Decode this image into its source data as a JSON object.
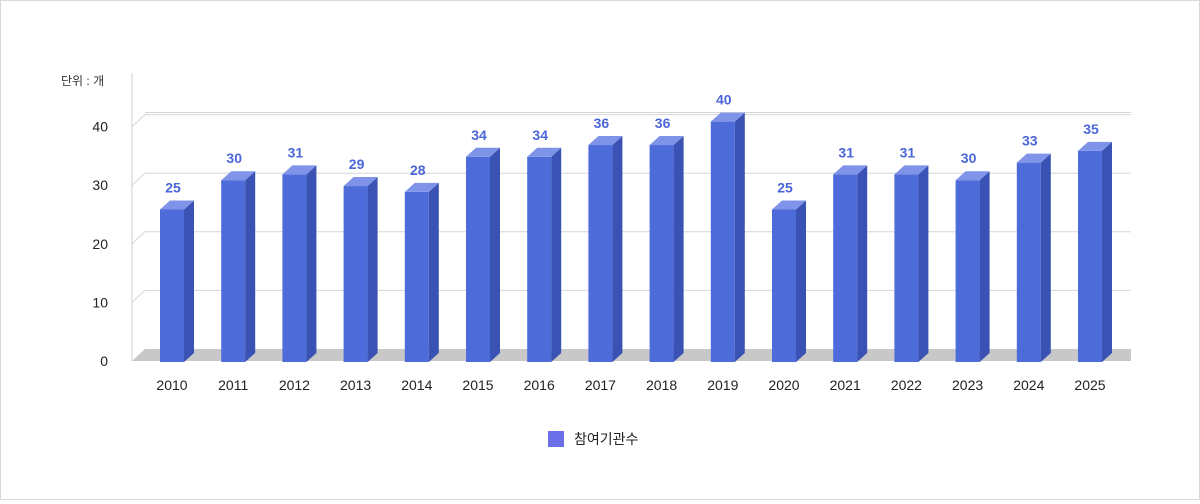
{
  "chart_data": {
    "type": "bar",
    "style": "3d",
    "unit_label": "단위 : 개",
    "categories": [
      "2010",
      "2011",
      "2012",
      "2013",
      "2014",
      "2015",
      "2016",
      "2017",
      "2018",
      "2019",
      "2020",
      "2021",
      "2022",
      "2023",
      "2024",
      "2025"
    ],
    "series": [
      {
        "name": "참여기관수",
        "values": [
          25,
          30,
          31,
          29,
          28,
          34,
          34,
          36,
          36,
          40,
          25,
          31,
          31,
          30,
          33,
          35
        ],
        "color": "#4d6bd9"
      }
    ],
    "yticks": [
      "0",
      "10",
      "20",
      "30",
      "40"
    ],
    "ylim": [
      0,
      45
    ],
    "grid": true,
    "legend_position": "bottom-center",
    "data_labels": true
  }
}
